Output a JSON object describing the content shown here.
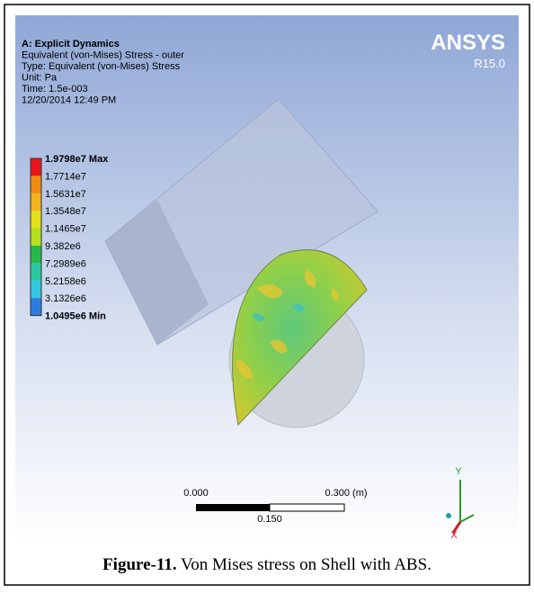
{
  "header": {
    "lines": [
      "A: Explicit Dynamics",
      "Equivalent (von-Mises) Stress - outer",
      "Type: Equivalent (von-Mises) Stress",
      "Unit: Pa",
      "Time: 1.5e-003",
      "12/20/2014 12:49 PM"
    ]
  },
  "logo": {
    "name": "ANSYS",
    "version": "R15.0"
  },
  "legend": {
    "labels": [
      "1.9798e7 Max",
      "1.7714e7",
      "1.5631e7",
      "1.3548e7",
      "1.1465e7",
      "9.382e6",
      "7.2989e6",
      "5.2158e6",
      "3.1326e6",
      "1.0495e6 Min"
    ],
    "colors": [
      "#e8141b",
      "#f08a10",
      "#f3b21e",
      "#e2e21a",
      "#b4e01d",
      "#27b84a",
      "#29c8a0",
      "#31c8e0",
      "#2b7ee0"
    ]
  },
  "scale_bar": {
    "left": "0.000",
    "right": "0.300 (m)",
    "middle": "0.150"
  },
  "triad": {
    "y": "Y",
    "x": "X"
  },
  "caption": {
    "label": "Figure-11.",
    "text": "Von Mises stress on Shell with ABS."
  }
}
